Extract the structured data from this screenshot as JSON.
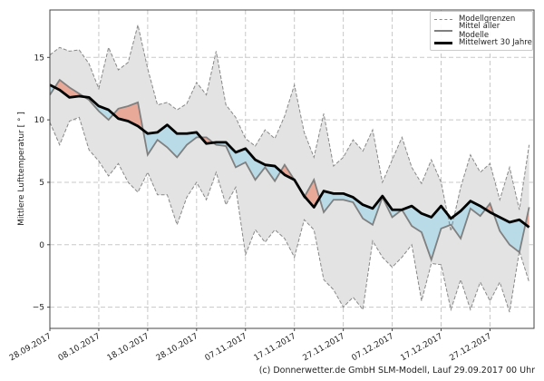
{
  "chart_data": {
    "type": "line",
    "title": "",
    "xlabel": "",
    "ylabel": "Mittlere Lufttemperatur [ ° ]",
    "x_unit": "days since 28.09.2017",
    "xlim": [
      0,
      99
    ],
    "ylim": [
      -6.7,
      18.8
    ],
    "grid": true,
    "legend_position": "top-right",
    "x_ticks": [
      {
        "day": 0,
        "label": "28.09.2017"
      },
      {
        "day": 10,
        "label": "08.10.2017"
      },
      {
        "day": 20,
        "label": "18.10.2017"
      },
      {
        "day": 30,
        "label": "28.10.2017"
      },
      {
        "day": 40,
        "label": "07.11.2017"
      },
      {
        "day": 50,
        "label": "17.11.2017"
      },
      {
        "day": 60,
        "label": "27.11.2017"
      },
      {
        "day": 70,
        "label": "07.12.2017"
      },
      {
        "day": 80,
        "label": "17.12.2017"
      },
      {
        "day": 90,
        "label": "27.12.2017"
      }
    ],
    "y_ticks": [
      {
        "value": -5,
        "label": "−5"
      },
      {
        "value": 0,
        "label": "0"
      },
      {
        "value": 5,
        "label": "5"
      },
      {
        "value": 10,
        "label": "10"
      },
      {
        "value": 15,
        "label": "15"
      }
    ],
    "x": [
      0,
      2,
      4,
      6,
      8,
      10,
      12,
      14,
      16,
      18,
      20,
      22,
      24,
      26,
      28,
      30,
      32,
      34,
      36,
      38,
      40,
      42,
      44,
      46,
      48,
      50,
      52,
      54,
      56,
      58,
      60,
      62,
      64,
      66,
      68,
      70,
      72,
      74,
      76,
      78,
      80,
      82,
      84,
      86,
      88,
      90,
      92,
      94,
      96,
      98
    ],
    "series": [
      {
        "name": "Modellgrenzen (oben)",
        "color": "#888888",
        "values": [
          15.2,
          15.8,
          15.5,
          15.6,
          14.5,
          12.5,
          15.8,
          14.0,
          14.6,
          17.6,
          14.1,
          11.2,
          11.4,
          10.8,
          11.3,
          13.0,
          12.0,
          15.5,
          11.2,
          10.2,
          8.5,
          7.9,
          9.2,
          8.5,
          10.3,
          12.8,
          9.0,
          7.0,
          10.5,
          6.3,
          7.0,
          8.4,
          7.5,
          9.2,
          5.0,
          6.8,
          8.6,
          6.2,
          4.9,
          6.8,
          5.0,
          1.1,
          4.6,
          7.2,
          5.8,
          6.5,
          3.6,
          6.2,
          2.8,
          8.0
        ]
      },
      {
        "name": "Modellgrenzen (unten)",
        "color": "#888888",
        "values": [
          9.8,
          8.0,
          9.9,
          10.2,
          7.6,
          6.7,
          5.5,
          6.5,
          5.0,
          4.2,
          5.8,
          4.0,
          4.0,
          1.6,
          3.8,
          5.0,
          3.6,
          5.8,
          3.2,
          4.6,
          -0.8,
          1.2,
          0.2,
          1.2,
          0.5,
          -1.0,
          2.0,
          1.2,
          -2.8,
          -3.6,
          -5.0,
          -4.2,
          -5.2,
          0.3,
          -1.0,
          -1.8,
          -1.0,
          0.0,
          -4.5,
          -1.5,
          -1.6,
          -5.2,
          -2.8,
          -5.2,
          -3.0,
          -4.5,
          -3.0,
          -5.4,
          -0.5,
          -3.0
        ]
      },
      {
        "name": "Mittel aller Modelle",
        "color": "#808080",
        "values": [
          12.0,
          13.2,
          12.6,
          12.1,
          11.6,
          10.7,
          10.0,
          10.9,
          11.1,
          11.4,
          7.2,
          8.4,
          7.8,
          7.0,
          8.0,
          8.6,
          8.6,
          8.0,
          7.9,
          6.2,
          6.6,
          5.2,
          6.2,
          5.1,
          6.4,
          5.2,
          3.8,
          5.2,
          2.6,
          3.6,
          3.6,
          3.4,
          2.1,
          1.6,
          3.8,
          2.2,
          2.8,
          1.5,
          1.0,
          -1.2,
          1.3,
          1.6,
          0.5,
          2.9,
          2.3,
          3.3,
          1.1,
          0.0,
          -0.6,
          3.0
        ]
      },
      {
        "name": "Mittelwert 30 Jahre",
        "color": "#000000",
        "values": [
          12.8,
          12.4,
          11.8,
          11.9,
          11.8,
          11.1,
          10.8,
          10.1,
          9.9,
          9.5,
          8.9,
          9.0,
          9.6,
          8.9,
          8.9,
          9.0,
          8.1,
          8.2,
          8.2,
          7.4,
          7.7,
          6.8,
          6.4,
          6.3,
          5.6,
          5.2,
          3.9,
          3.0,
          4.3,
          4.1,
          4.1,
          3.8,
          3.2,
          2.9,
          3.9,
          2.8,
          2.8,
          3.1,
          2.5,
          2.2,
          3.1,
          2.1,
          2.7,
          3.5,
          3.1,
          2.6,
          2.2,
          1.8,
          2.0,
          1.4
        ]
      }
    ],
    "fill_colors": {
      "above": "#e8a999",
      "below": "#b9dbe8",
      "band": "#e3e3e3"
    },
    "legend": [
      "Modellgrenzen",
      "Mittel aller Modelle",
      "Mittelwert 30 Jahre"
    ]
  },
  "footer": "(c) Donnerwetter.de GmbH SLM-Modell, Lauf 29.09.2017 00 Uhr"
}
